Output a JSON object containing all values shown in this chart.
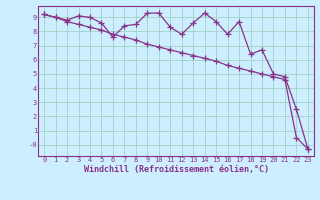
{
  "line1_x": [
    0,
    1,
    2,
    3,
    4,
    5,
    6,
    7,
    8,
    9,
    10,
    11,
    12,
    13,
    14,
    15,
    16,
    17,
    18,
    19,
    20,
    21,
    22,
    23
  ],
  "line1_y": [
    9.2,
    9.0,
    8.8,
    9.1,
    9.0,
    8.6,
    7.6,
    8.4,
    8.5,
    9.3,
    9.3,
    8.3,
    7.8,
    8.6,
    9.3,
    8.7,
    7.8,
    8.7,
    6.4,
    6.7,
    5.0,
    4.8,
    2.5,
    -0.3
  ],
  "line2_x": [
    0,
    1,
    2,
    3,
    4,
    5,
    6,
    7,
    8,
    9,
    10,
    11,
    12,
    13,
    14,
    15,
    16,
    17,
    18,
    19,
    20,
    21,
    22,
    23
  ],
  "line2_y": [
    9.2,
    9.0,
    8.7,
    8.5,
    8.3,
    8.1,
    7.8,
    7.6,
    7.4,
    7.1,
    6.9,
    6.7,
    6.5,
    6.3,
    6.1,
    5.9,
    5.6,
    5.4,
    5.2,
    5.0,
    4.8,
    4.6,
    0.5,
    -0.3
  ],
  "color": "#883388",
  "bg_color": "#cceeff",
  "grid_color": "#99ccbb",
  "xlabel": "Windchill (Refroidissement éolien,°C)",
  "xlim": [
    -0.5,
    23.5
  ],
  "ylim": [
    -0.8,
    9.8
  ],
  "yticks": [
    0,
    1,
    2,
    3,
    4,
    5,
    6,
    7,
    8,
    9
  ],
  "ytick_labels": [
    "-0",
    "1",
    "2",
    "3",
    "4",
    "5",
    "6",
    "7",
    "8",
    "9"
  ],
  "xticks": [
    0,
    1,
    2,
    3,
    4,
    5,
    6,
    7,
    8,
    9,
    10,
    11,
    12,
    13,
    14,
    15,
    16,
    17,
    18,
    19,
    20,
    21,
    22,
    23
  ],
  "marker": "+",
  "markersize": 4,
  "linewidth": 0.9,
  "tick_fontsize": 5.0,
  "xlabel_fontsize": 6.0
}
